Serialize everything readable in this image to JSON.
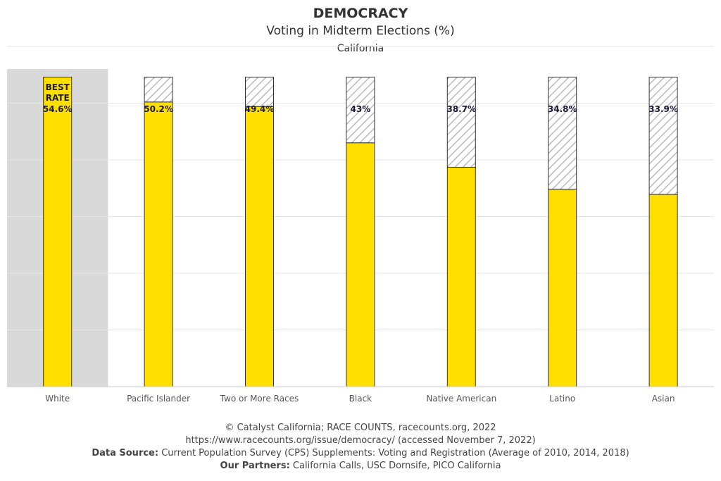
{
  "header": {
    "title": "DEMOCRACY",
    "subtitle": "Voting in Midterm Elections (%)",
    "geography": "California"
  },
  "chart_data": {
    "type": "bar",
    "categories": [
      "White",
      "Pacific Islander",
      "Two or More Races",
      "Black",
      "Native American",
      "Latino",
      "Asian"
    ],
    "values": [
      54.6,
      50.2,
      49.4,
      43,
      38.7,
      34.8,
      33.9
    ],
    "labels": [
      "54.6%",
      "50.2%",
      "49.4%",
      "43%",
      "38.7%",
      "34.8%",
      "33.9%"
    ],
    "best_rate": {
      "category": "White",
      "label_line1": "BEST",
      "label_line2": "RATE",
      "value": 54.6
    },
    "gap_to_best_shown": true,
    "ylim": [
      0,
      60
    ],
    "grid": true,
    "title": "",
    "xlabel": "",
    "ylabel": "",
    "colors": {
      "bar": "#FFDF00",
      "gap_hatch": "#BBBBBB",
      "best_highlight": "#D9D9D9",
      "gridline": "#E6E6E6",
      "label": "#1A1A3A"
    }
  },
  "footer": {
    "copyright": "© Catalyst California; RACE COUNTS, racecounts.org, 2022",
    "url": "https://www.racecounts.org/issue/democracy/ (accessed November 7, 2022)",
    "data_source_label": "Data Source:",
    "data_source_text": "Current Population Survey (CPS) Supplements: Voting and Registration (Average of 2010, 2014, 2018)",
    "partners_label": "Our Partners:",
    "partners_text": "California Calls, USC Dornsife, PICO California"
  }
}
